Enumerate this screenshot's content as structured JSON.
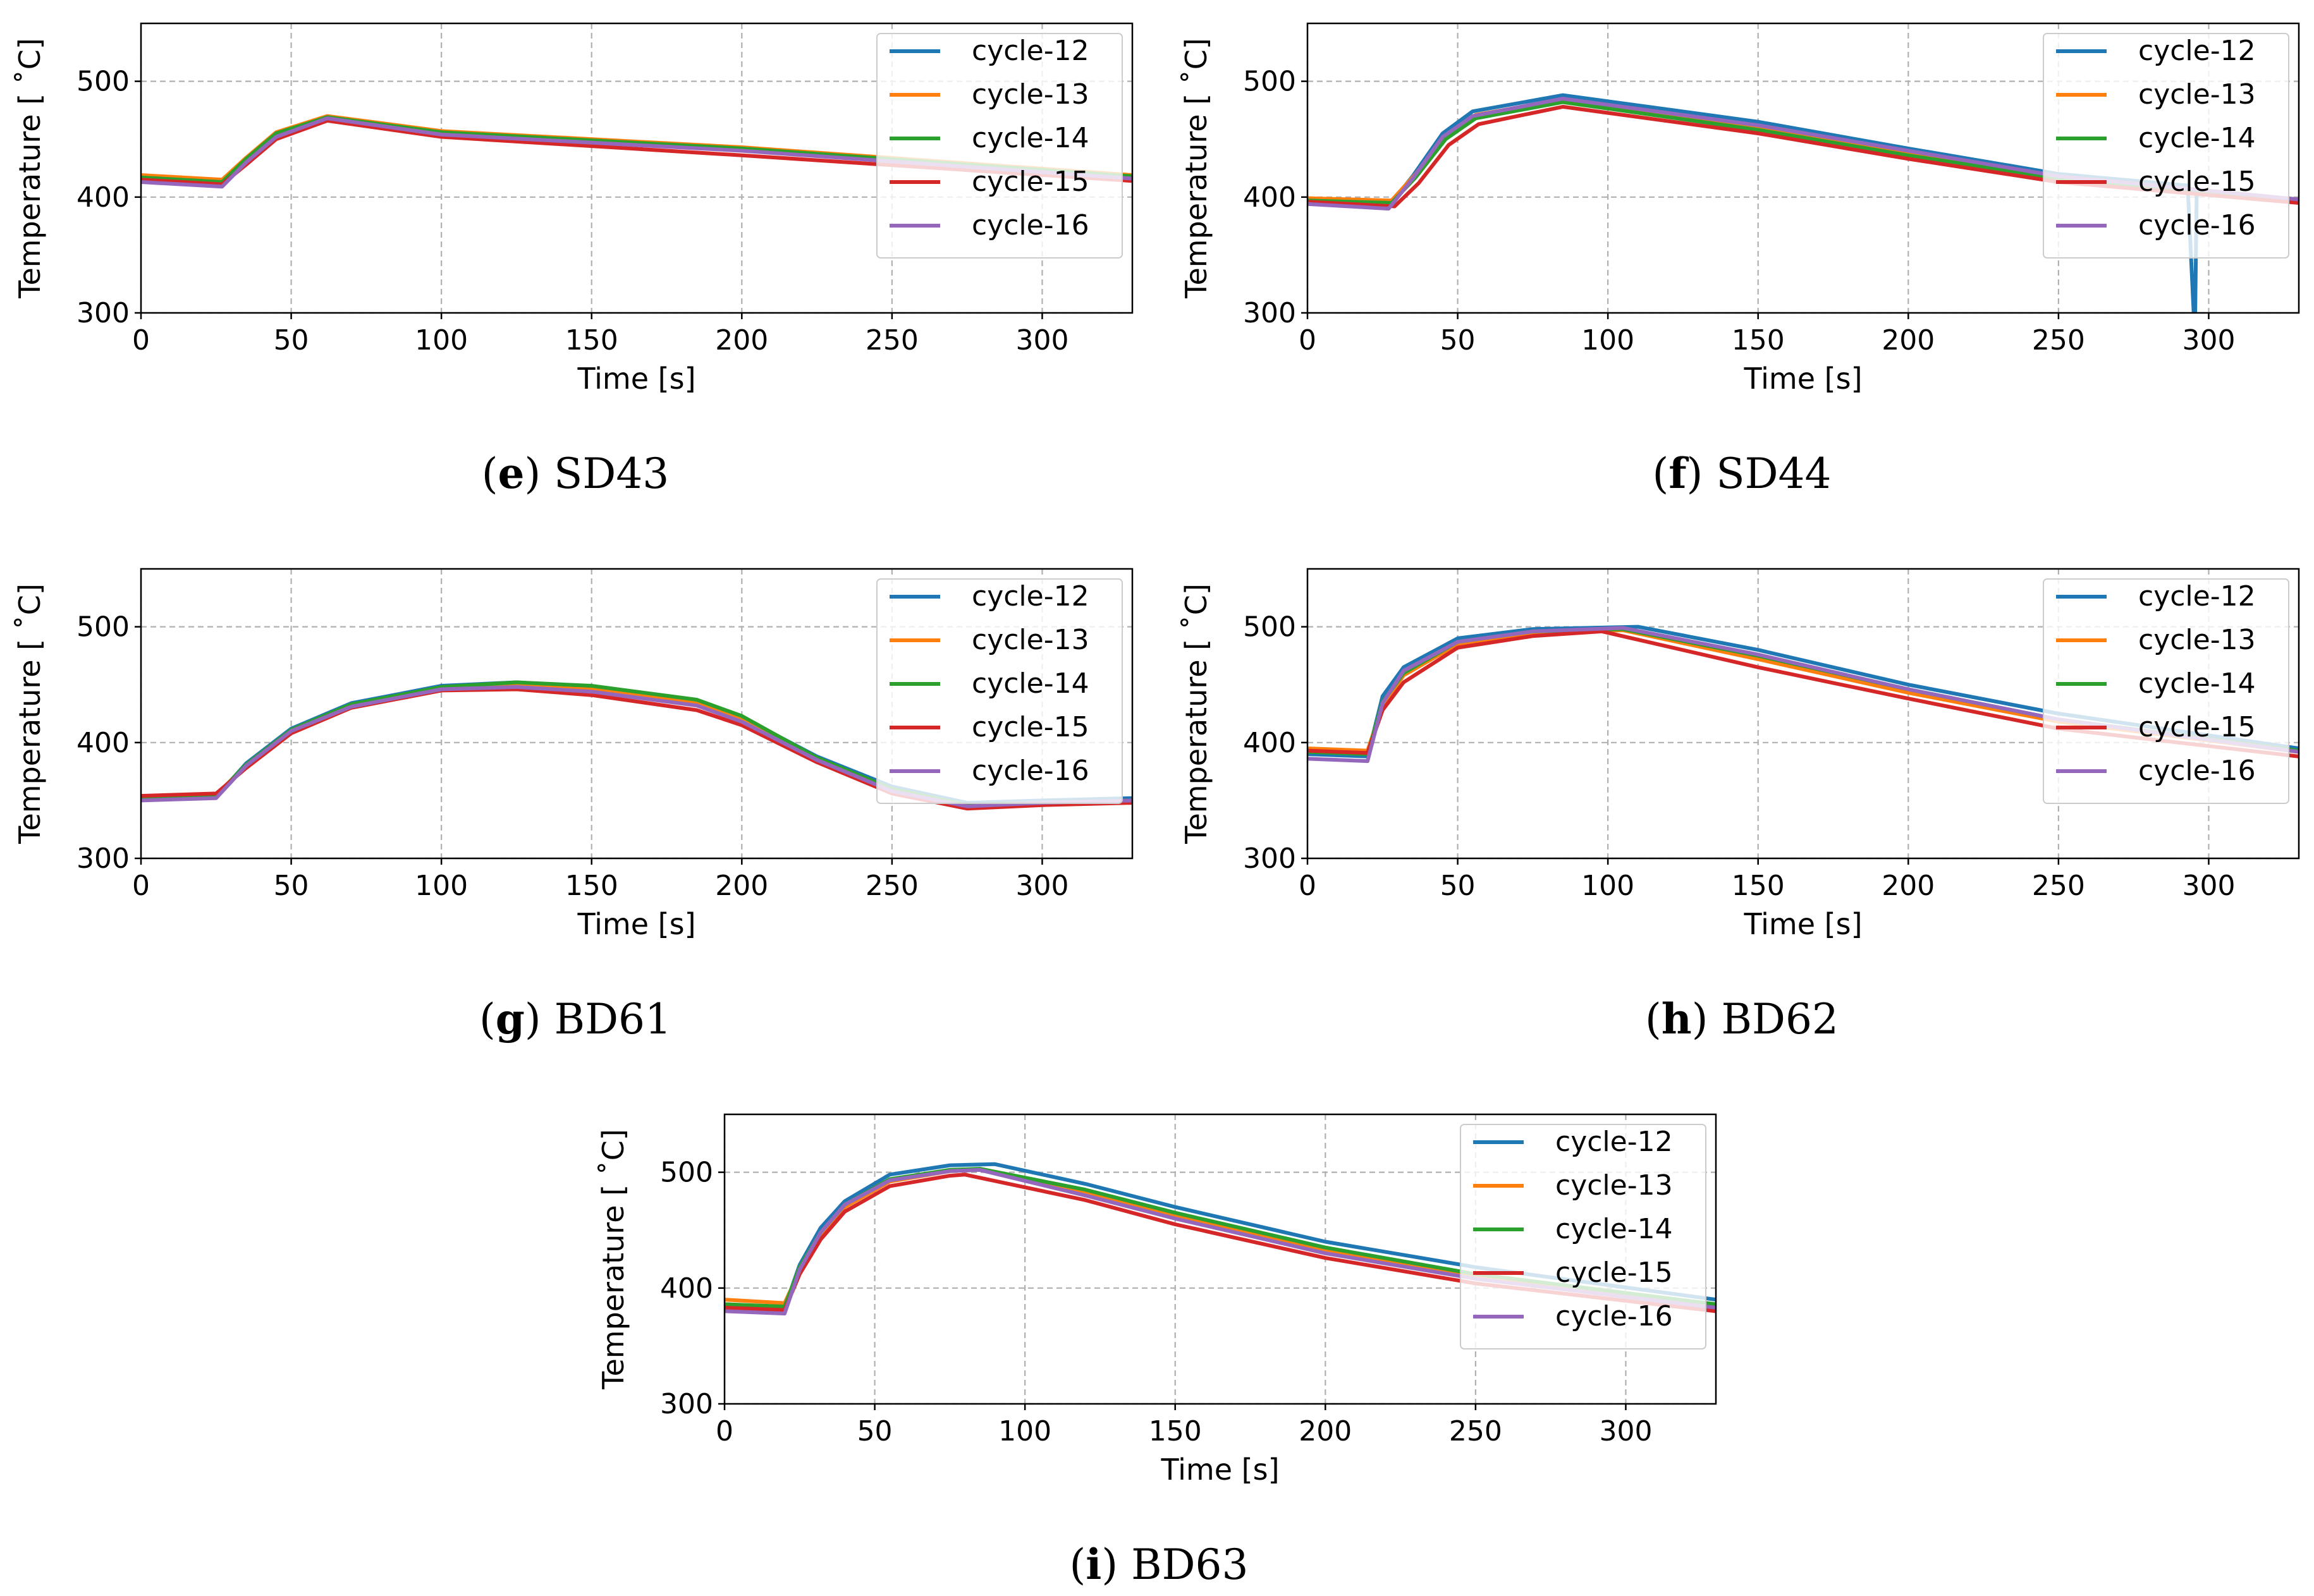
{
  "figure": {
    "colors": {
      "cycle-12": "#1f77b4",
      "cycle-13": "#ff7f0e",
      "cycle-14": "#2ca02c",
      "cycle-15": "#d62728",
      "cycle-16": "#9467bd"
    },
    "shared_axes": {
      "xlabel": "Time [s]",
      "ylabel": "Temperature [$^\\circ$C]",
      "ylabel_display": "Temperature [ ˚C]",
      "xlim": [
        0,
        330
      ],
      "ylim": [
        300,
        550
      ],
      "xticks": [
        0,
        50,
        100,
        150,
        200,
        250,
        300
      ],
      "yticks": [
        300,
        400,
        500
      ],
      "grid": true
    }
  },
  "chart_data": [
    {
      "id": "e",
      "type": "line",
      "caption_letter": "e",
      "caption_name": " SD43",
      "xlabel": "Time [s]",
      "ylabel": "Temperature [ ˚C]",
      "xlim": [
        0,
        330
      ],
      "ylim": [
        300,
        550
      ],
      "legend_position": "top-right",
      "series": [
        {
          "name": "cycle-12",
          "x": [
            0,
            27,
            35,
            45,
            62,
            100,
            200,
            330
          ],
          "values": [
            416,
            412,
            433,
            455,
            469,
            456,
            442,
            418
          ]
        },
        {
          "name": "cycle-13",
          "x": [
            0,
            27,
            35,
            45,
            62,
            100,
            200,
            330
          ],
          "values": [
            419,
            415,
            434,
            456,
            470,
            457,
            443,
            419
          ]
        },
        {
          "name": "cycle-14",
          "x": [
            0,
            27,
            35,
            45,
            62,
            100,
            200,
            330
          ],
          "values": [
            417,
            413,
            433,
            455,
            469,
            456,
            442,
            418
          ]
        },
        {
          "name": "cycle-15",
          "x": [
            0,
            27,
            35,
            45,
            62,
            100,
            200,
            330
          ],
          "values": [
            415,
            411,
            428,
            450,
            466,
            452,
            436,
            414
          ]
        },
        {
          "name": "cycle-16",
          "x": [
            0,
            27,
            35,
            45,
            62,
            100,
            200,
            330
          ],
          "values": [
            413,
            409,
            430,
            452,
            468,
            454,
            440,
            416
          ]
        }
      ]
    },
    {
      "id": "f",
      "type": "line",
      "caption_letter": "f",
      "caption_name": " SD44",
      "xlabel": "Time [s]",
      "ylabel": "Temperature [ ˚C]",
      "xlim": [
        0,
        330
      ],
      "ylim": [
        300,
        550
      ],
      "legend_position": "top-right",
      "series": [
        {
          "name": "cycle-12",
          "x": [
            0,
            27,
            35,
            45,
            55,
            85,
            150,
            200,
            250,
            293,
            295,
            295.5,
            296,
            330
          ],
          "values": [
            395,
            392,
            418,
            455,
            474,
            488,
            465,
            442,
            420,
            410,
            300,
            300,
            404,
            397
          ]
        },
        {
          "name": "cycle-13",
          "x": [
            0,
            28,
            36,
            46,
            56,
            85,
            150,
            200,
            250,
            330
          ],
          "values": [
            399,
            397,
            420,
            453,
            471,
            484,
            460,
            438,
            418,
            398
          ]
        },
        {
          "name": "cycle-14",
          "x": [
            0,
            28,
            36,
            46,
            56,
            85,
            150,
            200,
            250,
            330
          ],
          "values": [
            397,
            395,
            417,
            450,
            468,
            482,
            458,
            436,
            416,
            397
          ]
        },
        {
          "name": "cycle-15",
          "x": [
            0,
            29,
            37,
            47,
            57,
            85,
            150,
            200,
            250,
            330
          ],
          "values": [
            396,
            392,
            412,
            445,
            463,
            478,
            455,
            433,
            413,
            395
          ]
        },
        {
          "name": "cycle-16",
          "x": [
            0,
            27,
            35,
            45,
            55,
            85,
            150,
            200,
            250,
            330
          ],
          "values": [
            394,
            390,
            416,
            452,
            470,
            485,
            462,
            440,
            418,
            398
          ]
        }
      ]
    },
    {
      "id": "g",
      "type": "line",
      "caption_letter": "g",
      "caption_name": " BD61",
      "xlabel": "Time [s]",
      "ylabel": "Temperature [ ˚C]",
      "xlim": [
        0,
        330
      ],
      "ylim": [
        300,
        550
      ],
      "legend_position": "top-right",
      "series": [
        {
          "name": "cycle-12",
          "x": [
            0,
            25,
            35,
            50,
            70,
            100,
            125,
            150,
            185,
            200,
            225,
            250,
            275,
            300,
            330
          ],
          "values": [
            352,
            353,
            382,
            412,
            434,
            449,
            452,
            448,
            436,
            422,
            388,
            362,
            348,
            350,
            352
          ]
        },
        {
          "name": "cycle-13",
          "x": [
            0,
            25,
            35,
            50,
            70,
            100,
            125,
            150,
            185,
            200,
            225,
            250,
            275,
            300,
            330
          ],
          "values": [
            353,
            355,
            380,
            410,
            432,
            447,
            450,
            446,
            434,
            420,
            386,
            360,
            346,
            348,
            350
          ]
        },
        {
          "name": "cycle-14",
          "x": [
            0,
            25,
            35,
            50,
            70,
            100,
            125,
            150,
            185,
            200,
            225,
            250,
            275,
            300,
            330
          ],
          "values": [
            352,
            354,
            381,
            411,
            433,
            448,
            452,
            449,
            437,
            423,
            387,
            360,
            346,
            348,
            350
          ]
        },
        {
          "name": "cycle-15",
          "x": [
            0,
            25,
            35,
            50,
            70,
            100,
            125,
            150,
            185,
            200,
            225,
            250,
            275,
            300,
            330
          ],
          "values": [
            354,
            356,
            378,
            408,
            430,
            445,
            446,
            441,
            428,
            415,
            383,
            356,
            343,
            346,
            348
          ]
        },
        {
          "name": "cycle-16",
          "x": [
            0,
            25,
            35,
            50,
            70,
            100,
            125,
            150,
            185,
            200,
            225,
            250,
            275,
            300,
            330
          ],
          "values": [
            350,
            352,
            380,
            410,
            431,
            446,
            448,
            444,
            432,
            418,
            385,
            358,
            345,
            348,
            350
          ]
        }
      ]
    },
    {
      "id": "h",
      "type": "line",
      "caption_letter": "h",
      "caption_name": " BD62",
      "xlabel": "Time [s]",
      "ylabel": "Temperature [ ˚C]",
      "xlim": [
        0,
        330
      ],
      "ylim": [
        300,
        550
      ],
      "legend_position": "top-right",
      "series": [
        {
          "name": "cycle-12",
          "x": [
            0,
            20,
            25,
            32,
            50,
            75,
            110,
            150,
            200,
            250,
            330
          ],
          "values": [
            390,
            388,
            440,
            465,
            490,
            498,
            500,
            480,
            450,
            425,
            395
          ]
        },
        {
          "name": "cycle-13",
          "x": [
            0,
            20,
            25,
            32,
            50,
            75,
            105,
            150,
            200,
            250,
            330
          ],
          "values": [
            395,
            393,
            432,
            458,
            485,
            495,
            497,
            472,
            443,
            418,
            392
          ]
        },
        {
          "name": "cycle-14",
          "x": [
            0,
            20,
            25,
            32,
            50,
            75,
            105,
            150,
            200,
            250,
            330
          ],
          "values": [
            392,
            390,
            435,
            460,
            487,
            496,
            498,
            475,
            446,
            420,
            393
          ]
        },
        {
          "name": "cycle-15",
          "x": [
            0,
            20,
            25,
            32,
            50,
            75,
            98,
            150,
            200,
            250,
            330
          ],
          "values": [
            393,
            391,
            428,
            452,
            482,
            492,
            496,
            465,
            438,
            412,
            388
          ]
        },
        {
          "name": "cycle-16",
          "x": [
            0,
            20,
            25,
            32,
            50,
            75,
            105,
            150,
            200,
            250,
            330
          ],
          "values": [
            386,
            384,
            434,
            462,
            487,
            496,
            499,
            476,
            446,
            420,
            392
          ]
        }
      ]
    },
    {
      "id": "i",
      "type": "line",
      "caption_letter": "i",
      "caption_name": " BD63",
      "xlabel": "Time [s]",
      "ylabel": "Temperature [ ˚C]",
      "xlim": [
        0,
        330
      ],
      "ylim": [
        300,
        550
      ],
      "legend_position": "top-right",
      "series": [
        {
          "name": "cycle-12",
          "x": [
            0,
            20,
            25,
            32,
            40,
            55,
            75,
            90,
            120,
            150,
            200,
            250,
            330
          ],
          "values": [
            386,
            383,
            420,
            452,
            475,
            498,
            506,
            507,
            490,
            470,
            440,
            418,
            390
          ]
        },
        {
          "name": "cycle-13",
          "x": [
            0,
            20,
            25,
            32,
            40,
            55,
            75,
            85,
            120,
            150,
            200,
            250,
            330
          ],
          "values": [
            390,
            387,
            415,
            446,
            470,
            492,
            501,
            502,
            482,
            462,
            432,
            410,
            385
          ]
        },
        {
          "name": "cycle-14",
          "x": [
            0,
            20,
            25,
            32,
            40,
            55,
            75,
            85,
            120,
            150,
            200,
            250,
            330
          ],
          "values": [
            386,
            384,
            418,
            448,
            472,
            494,
            502,
            503,
            485,
            465,
            435,
            412,
            386
          ]
        },
        {
          "name": "cycle-15",
          "x": [
            0,
            20,
            25,
            32,
            40,
            55,
            75,
            80,
            120,
            150,
            200,
            250,
            330
          ],
          "values": [
            383,
            381,
            412,
            442,
            466,
            488,
            497,
            498,
            476,
            455,
            426,
            404,
            380
          ]
        },
        {
          "name": "cycle-16",
          "x": [
            0,
            20,
            25,
            32,
            40,
            55,
            75,
            85,
            120,
            150,
            200,
            250,
            330
          ],
          "values": [
            380,
            378,
            416,
            448,
            472,
            493,
            501,
            502,
            480,
            460,
            430,
            408,
            383
          ]
        }
      ]
    }
  ]
}
